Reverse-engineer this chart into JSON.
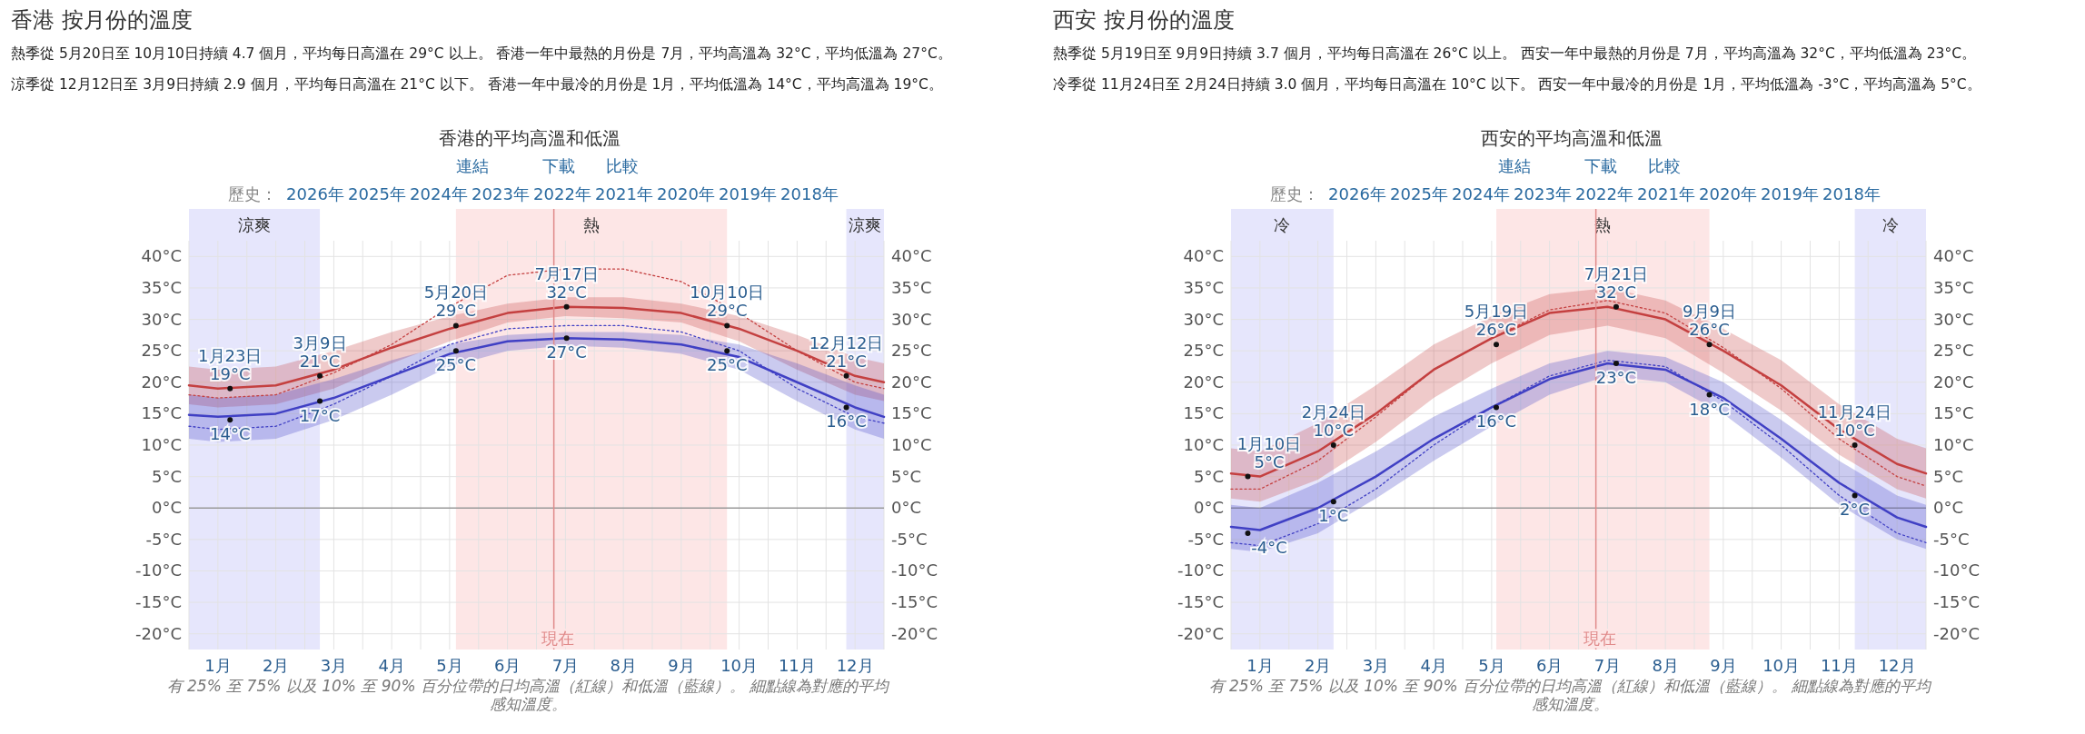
{
  "chart_data": [
    {
      "type": "line",
      "title": "香港的平均高溫和低溫",
      "xlim": [
        0,
        12
      ],
      "xticks": [
        {
          "value": 0,
          "label": null
        },
        {
          "value": 0.5,
          "label": "1月"
        },
        {
          "value": 1,
          "label": null
        },
        {
          "value": 1.5,
          "label": "2月"
        },
        {
          "value": 2,
          "label": null
        },
        {
          "value": 2.5,
          "label": "3月"
        },
        {
          "value": 3,
          "label": null
        },
        {
          "value": 3.5,
          "label": "4月"
        },
        {
          "value": 4,
          "label": null
        },
        {
          "value": 4.5,
          "label": "5月"
        },
        {
          "value": 5,
          "label": null
        },
        {
          "value": 5.5,
          "label": "6月"
        },
        {
          "value": 6,
          "label": null
        },
        {
          "value": 6.5,
          "label": "7月"
        },
        {
          "value": 7,
          "label": null
        },
        {
          "value": 7.5,
          "label": "8月"
        },
        {
          "value": 8,
          "label": null
        },
        {
          "value": 8.5,
          "label": "9月"
        },
        {
          "value": 9,
          "label": null
        },
        {
          "value": 9.5,
          "label": "10月"
        },
        {
          "value": 10,
          "label": null
        },
        {
          "value": 10.5,
          "label": "11月"
        },
        {
          "value": 11,
          "label": null
        },
        {
          "value": 11.5,
          "label": "12月"
        },
        {
          "value": 12,
          "label": null
        }
      ],
      "ylim": [
        -22.5,
        42.5
      ],
      "yticks": [
        {
          "value": -20,
          "label": "-20°C"
        },
        {
          "value": -15,
          "label": "-15°C"
        },
        {
          "value": -10,
          "label": "-10°C"
        },
        {
          "value": -5,
          "label": "-5°C"
        },
        {
          "value": 0,
          "label": "0°C"
        },
        {
          "value": 5,
          "label": "5°C"
        },
        {
          "value": 10,
          "label": "10°C"
        },
        {
          "value": 15,
          "label": "15°C"
        },
        {
          "value": 20,
          "label": "20°C"
        },
        {
          "value": 25,
          "label": "25°C"
        },
        {
          "value": 30,
          "label": "30°C"
        },
        {
          "value": 35,
          "label": "35°C"
        },
        {
          "value": 40,
          "label": "40°C"
        }
      ],
      "y2lim": [
        -22.5,
        42.5
      ],
      "y2ticks": [
        {
          "value": -20,
          "label": "-20°C"
        },
        {
          "value": -15,
          "label": "-15°C"
        },
        {
          "value": -10,
          "label": "-10°C"
        },
        {
          "value": -5,
          "label": "-5°C"
        },
        {
          "value": 0,
          "label": "0°C"
        },
        {
          "value": 5,
          "label": "5°C"
        },
        {
          "value": 10,
          "label": "10°C"
        },
        {
          "value": 15,
          "label": "15°C"
        },
        {
          "value": 20,
          "label": "20°C"
        },
        {
          "value": 25,
          "label": "25°C"
        },
        {
          "value": 30,
          "label": "30°C"
        },
        {
          "value": 35,
          "label": "35°C"
        },
        {
          "value": 40,
          "label": "40°C"
        }
      ],
      "grid": true,
      "bands": [
        {
          "axis": "x",
          "from": 0,
          "to": 2.26,
          "label": "涼爽",
          "color": "#e6e6fc"
        },
        {
          "axis": "x",
          "from": 11.35,
          "to": 12,
          "label": "涼爽",
          "color": "#e6e6fc"
        },
        {
          "axis": "x",
          "from": 4.61,
          "to": 9.29,
          "label": "熱",
          "color": "#fde6e6"
        }
      ],
      "ref_lines": [
        {
          "axis": "x",
          "value": 6.3,
          "label": "現在",
          "color": "#e08a8a"
        }
      ],
      "series": [
        {
          "type": "line",
          "color": "#c44040",
          "x": [
            0,
            0.5,
            1.5,
            2.5,
            3.5,
            4.5,
            5.5,
            6.5,
            7.5,
            8.5,
            9.5,
            10.5,
            11.5,
            12
          ],
          "values": [
            19.5,
            19,
            19.5,
            22,
            25.5,
            28.5,
            31,
            32,
            31.8,
            31,
            28.5,
            25,
            21,
            20
          ],
          "lower": [
            16.5,
            16,
            16.5,
            19,
            23,
            26.5,
            29.5,
            30.5,
            30.2,
            29.5,
            26.5,
            22,
            18,
            17
          ],
          "upper": [
            22.5,
            22,
            22.5,
            25,
            28,
            30.5,
            32.5,
            33.5,
            33.5,
            32.5,
            30.5,
            27.5,
            24,
            23
          ]
        },
        {
          "type": "line",
          "color": "#4040c4",
          "x": [
            0,
            0.5,
            1.5,
            2.5,
            3.5,
            4.5,
            5.5,
            6.5,
            7.5,
            8.5,
            9.5,
            10.5,
            11.5,
            12
          ],
          "values": [
            14.8,
            14.5,
            15,
            17.5,
            21,
            24.5,
            26.5,
            27,
            26.8,
            26,
            24,
            20,
            16,
            14.5
          ],
          "lower": [
            11,
            10.5,
            11,
            14,
            18,
            22.5,
            25,
            25.8,
            25.5,
            24.5,
            22,
            17,
            12.5,
            11
          ],
          "upper": [
            18,
            17.5,
            18,
            20.5,
            23.5,
            26,
            27.5,
            28,
            28,
            27.5,
            26,
            23,
            19.5,
            18
          ]
        },
        {
          "type": "line",
          "color": "#c44040",
          "line_style": "dotted",
          "x": [
            0,
            0.5,
            1.5,
            2.5,
            3.5,
            4.5,
            5.5,
            6.5,
            7.5,
            8.5,
            9.5,
            10.5,
            11.5,
            12
          ],
          "values": [
            18,
            17.5,
            18,
            21.5,
            26,
            32,
            37,
            38,
            38,
            36,
            31,
            25,
            20,
            19
          ]
        },
        {
          "type": "line",
          "color": "#4040c4",
          "line_style": "dotted",
          "x": [
            0,
            0.5,
            1.5,
            2.5,
            3.5,
            4.5,
            5.5,
            6.5,
            7.5,
            8.5,
            9.5,
            10.5,
            11.5,
            12
          ],
          "values": [
            13,
            12.5,
            13,
            16.5,
            21,
            26,
            28.5,
            29,
            29,
            28,
            25,
            19,
            14.5,
            13.5
          ]
        }
      ],
      "annotations": [
        "香港 按月份的溫度",
        "熱季從 5月20日至 10月10日持續 4.7 個月，平均每日高溫在 29°C 以上。 香港一年中最熱的月份是 7月，平均高溫為 32°C，平均低溫為 27°C。",
        "涼季從 12月12日至 3月9日持續 2.9 個月，平均每日高溫在 21°C 以下。 香港一年中最冷的月份是 1月，平均低溫為 14°C，平均高溫為 19°C。",
        "連結",
        "下載",
        "比較",
        "歷史：",
        "2026年",
        "2025年",
        "2024年",
        "2023年",
        "2022年",
        "2021年",
        "2020年",
        "2019年",
        "2018年",
        "有 25% 至 75% 以及 10% 至 90% 百分位帶的日均高溫（紅線）和低溫（藍線）。 細點線為對應的平均感知溫度。",
        {
          "text": "1月23日\n19°C",
          "x": 0.71,
          "y": 19
        },
        {
          "text": "14°C",
          "x": 0.71,
          "y": 14
        },
        {
          "text": "3月9日\n21°C",
          "x": 2.26,
          "y": 21
        },
        {
          "text": "17°C",
          "x": 2.26,
          "y": 17
        },
        {
          "text": "5月20日\n29°C",
          "x": 4.61,
          "y": 29
        },
        {
          "text": "25°C",
          "x": 4.61,
          "y": 25
        },
        {
          "text": "7月17日\n32°C",
          "x": 6.52,
          "y": 32
        },
        {
          "text": "27°C",
          "x": 6.52,
          "y": 27
        },
        {
          "text": "10月10日\n29°C",
          "x": 9.29,
          "y": 29
        },
        {
          "text": "25°C",
          "x": 9.29,
          "y": 25
        },
        {
          "text": "12月12日\n21°C",
          "x": 11.35,
          "y": 21
        },
        {
          "text": "16°C",
          "x": 11.35,
          "y": 16
        }
      ]
    },
    {
      "type": "line",
      "title": "西安的平均高溫和低溫",
      "xlim": [
        0,
        12
      ],
      "xticks": [
        {
          "value": 0,
          "label": null
        },
        {
          "value": 0.5,
          "label": "1月"
        },
        {
          "value": 1,
          "label": null
        },
        {
          "value": 1.5,
          "label": "2月"
        },
        {
          "value": 2,
          "label": null
        },
        {
          "value": 2.5,
          "label": "3月"
        },
        {
          "value": 3,
          "label": null
        },
        {
          "value": 3.5,
          "label": "4月"
        },
        {
          "value": 4,
          "label": null
        },
        {
          "value": 4.5,
          "label": "5月"
        },
        {
          "value": 5,
          "label": null
        },
        {
          "value": 5.5,
          "label": "6月"
        },
        {
          "value": 6,
          "label": null
        },
        {
          "value": 6.5,
          "label": "7月"
        },
        {
          "value": 7,
          "label": null
        },
        {
          "value": 7.5,
          "label": "8月"
        },
        {
          "value": 8,
          "label": null
        },
        {
          "value": 8.5,
          "label": "9月"
        },
        {
          "value": 9,
          "label": null
        },
        {
          "value": 9.5,
          "label": "10月"
        },
        {
          "value": 10,
          "label": null
        },
        {
          "value": 10.5,
          "label": "11月"
        },
        {
          "value": 11,
          "label": null
        },
        {
          "value": 11.5,
          "label": "12月"
        },
        {
          "value": 12,
          "label": null
        }
      ],
      "ylim": [
        -22.5,
        42.5
      ],
      "yticks": [
        {
          "value": -20,
          "label": "-20°C"
        },
        {
          "value": -15,
          "label": "-15°C"
        },
        {
          "value": -10,
          "label": "-10°C"
        },
        {
          "value": -5,
          "label": "-5°C"
        },
        {
          "value": 0,
          "label": "0°C"
        },
        {
          "value": 5,
          "label": "5°C"
        },
        {
          "value": 10,
          "label": "10°C"
        },
        {
          "value": 15,
          "label": "15°C"
        },
        {
          "value": 20,
          "label": "20°C"
        },
        {
          "value": 25,
          "label": "25°C"
        },
        {
          "value": 30,
          "label": "30°C"
        },
        {
          "value": 35,
          "label": "35°C"
        },
        {
          "value": 40,
          "label": "40°C"
        }
      ],
      "y2lim": [
        -22.5,
        42.5
      ],
      "y2ticks": [
        {
          "value": -20,
          "label": "-20°C"
        },
        {
          "value": -15,
          "label": "-15°C"
        },
        {
          "value": -10,
          "label": "-10°C"
        },
        {
          "value": -5,
          "label": "-5°C"
        },
        {
          "value": 0,
          "label": "0°C"
        },
        {
          "value": 5,
          "label": "5°C"
        },
        {
          "value": 10,
          "label": "10°C"
        },
        {
          "value": 15,
          "label": "15°C"
        },
        {
          "value": 20,
          "label": "20°C"
        },
        {
          "value": 25,
          "label": "25°C"
        },
        {
          "value": 30,
          "label": "30°C"
        },
        {
          "value": 35,
          "label": "35°C"
        },
        {
          "value": 40,
          "label": "40°C"
        }
      ],
      "grid": true,
      "bands": [
        {
          "axis": "x",
          "from": 0,
          "to": 1.77,
          "label": "冷",
          "color": "#e6e6fc"
        },
        {
          "axis": "x",
          "from": 10.77,
          "to": 12,
          "label": "冷",
          "color": "#e6e6fc"
        },
        {
          "axis": "x",
          "from": 4.58,
          "to": 8.26,
          "label": "熱",
          "color": "#fde6e6"
        }
      ],
      "ref_lines": [
        {
          "axis": "x",
          "value": 6.3,
          "label": "現在",
          "color": "#e08a8a"
        }
      ],
      "series": [
        {
          "type": "line",
          "color": "#c44040",
          "x": [
            0,
            0.5,
            1.5,
            2.5,
            3.5,
            4.5,
            5.5,
            6.5,
            7.5,
            8.5,
            9.5,
            10.5,
            11.5,
            12
          ],
          "values": [
            5.5,
            5,
            9,
            15,
            22,
            27,
            31,
            32,
            30,
            25,
            19.5,
            12.5,
            7,
            5.5
          ],
          "lower": [
            1.5,
            1,
            4.5,
            10.5,
            17.5,
            23,
            27.5,
            29,
            27,
            21.5,
            15.5,
            8.5,
            3,
            1.5
          ],
          "upper": [
            9.5,
            9,
            13.5,
            19.5,
            26,
            30.5,
            34,
            35,
            33,
            28.5,
            23.5,
            16.5,
            11,
            9.5
          ]
        },
        {
          "type": "line",
          "color": "#4040c4",
          "x": [
            0,
            0.5,
            1.5,
            2.5,
            3.5,
            4.5,
            5.5,
            6.5,
            7.5,
            8.5,
            9.5,
            10.5,
            11.5,
            12
          ],
          "values": [
            -3,
            -3.5,
            0,
            5,
            11,
            16,
            20.5,
            23,
            22,
            17.5,
            11,
            4,
            -1.5,
            -3
          ],
          "lower": [
            -6.5,
            -7,
            -4,
            1.5,
            7.5,
            13,
            18,
            21,
            20,
            15,
            8,
            0.5,
            -5,
            -6.5
          ],
          "upper": [
            0.5,
            0,
            4,
            9,
            14.5,
            19,
            23,
            25,
            24,
            20,
            14,
            7.5,
            2,
            0.5
          ]
        },
        {
          "type": "line",
          "color": "#c44040",
          "line_style": "dotted",
          "x": [
            0,
            0.5,
            1.5,
            2.5,
            3.5,
            4.5,
            5.5,
            6.5,
            7.5,
            8.5,
            9.5,
            10.5,
            11.5,
            12
          ],
          "values": [
            3,
            3,
            7.5,
            14.5,
            22,
            27,
            31.5,
            33,
            31,
            25.5,
            19,
            11,
            5,
            3.5
          ]
        },
        {
          "type": "line",
          "color": "#4040c4",
          "line_style": "dotted",
          "x": [
            0,
            0.5,
            1.5,
            2.5,
            3.5,
            4.5,
            5.5,
            6.5,
            7.5,
            8.5,
            9.5,
            10.5,
            11.5,
            12
          ],
          "values": [
            -5.5,
            -6,
            -2.5,
            3,
            10,
            16,
            21,
            23.5,
            22.5,
            17,
            10,
            2,
            -4,
            -5.5
          ]
        }
      ],
      "annotations": [
        "西安 按月份的溫度",
        "熱季從 5月19日至 9月9日持續 3.7 個月，平均每日高溫在 26°C 以上。 西安一年中最熱的月份是 7月，平均高溫為 32°C，平均低溫為 23°C。",
        "冷季從 11月24日至 2月24日持續 3.0 個月，平均每日高溫在 10°C 以下。 西安一年中最冷的月份是 1月，平均低溫為 -3°C，平均高溫為 5°C。",
        "連結",
        "下載",
        "比較",
        "歷史：",
        "2026年",
        "2025年",
        "2024年",
        "2023年",
        "2022年",
        "2021年",
        "2020年",
        "2019年",
        "2018年",
        "有 25% 至 75% 以及 10% 至 90% 百分位帶的日均高溫（紅線）和低溫（藍線）。 細點線為對應的平均感知溫度。",
        {
          "text": "1月10日\n5°C",
          "x": 0.29,
          "y": 5
        },
        {
          "text": "-4°C",
          "x": 0.29,
          "y": -4
        },
        {
          "text": "2月24日\n10°C",
          "x": 1.77,
          "y": 10
        },
        {
          "text": "1°C",
          "x": 1.77,
          "y": 1
        },
        {
          "text": "5月19日\n26°C",
          "x": 4.58,
          "y": 26
        },
        {
          "text": "16°C",
          "x": 4.58,
          "y": 16
        },
        {
          "text": "7月21日\n32°C",
          "x": 6.65,
          "y": 32
        },
        {
          "text": "23°C",
          "x": 6.65,
          "y": 23
        },
        {
          "text": "9月9日\n26°C",
          "x": 8.26,
          "y": 26
        },
        {
          "text": "18°C",
          "x": 8.26,
          "y": 18
        },
        {
          "text": "11月24日\n10°C",
          "x": 10.77,
          "y": 10
        },
        {
          "text": "2°C",
          "x": 10.77,
          "y": 2
        }
      ]
    }
  ]
}
